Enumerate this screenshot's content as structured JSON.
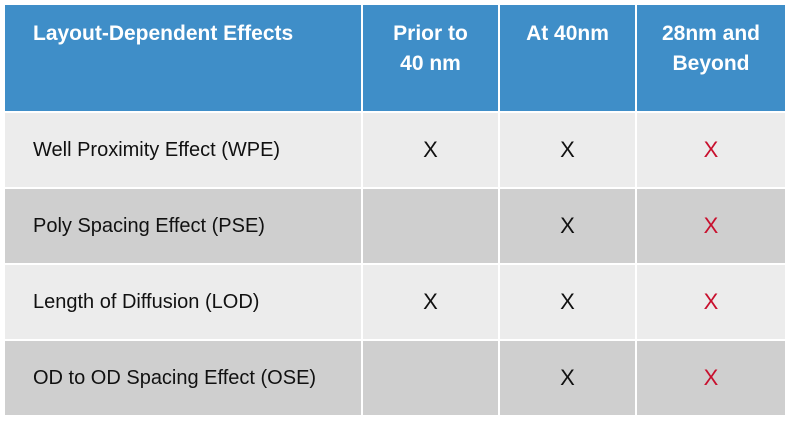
{
  "header": {
    "col0": "Layout-Dependent Effects",
    "col1_line1": "Prior to",
    "col1_line2": "40 nm",
    "col2": "At 40nm",
    "col3_line1": "28nm and",
    "col3_line2": "Beyond"
  },
  "rows": [
    {
      "label": "Well Proximity Effect (WPE)",
      "prior": "X",
      "at40": "X",
      "beyond": "X"
    },
    {
      "label": "Poly Spacing Effect (PSE)",
      "prior": "",
      "at40": "X",
      "beyond": "X"
    },
    {
      "label": "Length of Diffusion (LOD)",
      "prior": "X",
      "at40": "X",
      "beyond": "X"
    },
    {
      "label": "OD to OD Spacing Effect (OSE)",
      "prior": "",
      "at40": "X",
      "beyond": "X"
    }
  ],
  "colors": {
    "header_bg": "#3f8ec8",
    "row_light": "#ececec",
    "row_dark": "#cfcfcf",
    "mark_accent": "#c8102e"
  }
}
